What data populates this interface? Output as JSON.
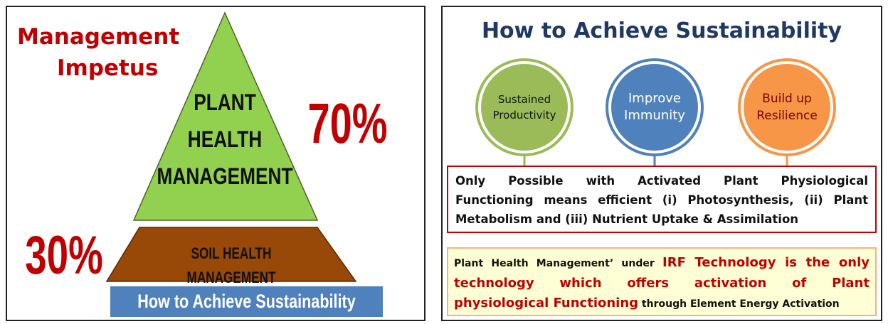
{
  "left": {
    "title_lines": [
      "Management",
      "Impetus"
    ],
    "pyramid_top_lines": [
      "PLANT",
      "HEALTH",
      "MANAGEMENT"
    ],
    "top_percent": "70%",
    "base_label": "SOIL HEALTH MANAGEMENT",
    "base_percent": "30%",
    "footer": "How to Achieve Sustainability"
  },
  "right": {
    "title": "How to Achieve Sustainability",
    "circles": [
      {
        "lines": [
          "Sustained",
          "Productivity"
        ]
      },
      {
        "lines": [
          "Improve",
          "Immunity"
        ]
      },
      {
        "lines": [
          "Build up",
          "Resilience"
        ]
      }
    ],
    "statement_lines": [
      "Only Possible with Activated Plant Physiological",
      "Functioning means efficient (i) Photosynthesis, (ii) Plant",
      "Metabolism and (iii) Nutrient Uptake & Assimilation"
    ],
    "note_lines": [
      [
        {
          "text": "Plant Health Management’ under ",
          "highlight": false
        },
        {
          "text": "IRF Technology is the only",
          "highlight": true
        }
      ],
      [
        {
          "text": "technology which offers activation of Plant",
          "highlight": true
        }
      ],
      [
        {
          "text": "physiological Functioning",
          "highlight": true
        },
        {
          "text": " through Element Energy Activation",
          "highlight": false
        }
      ]
    ]
  }
}
